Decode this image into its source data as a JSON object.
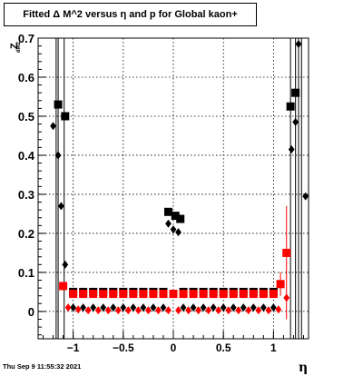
{
  "title": "Fitted Δ M^2 versus η and p for Global kaon+",
  "timestamp": "Thu Sep  9 11:55:32 2021",
  "chart_data": {
    "type": "scatter",
    "title": "Fitted Δ M^2 versus η and p for Global kaon+",
    "xlabel": "η",
    "ylabel": "Z",
    "ylabel_subscript": "dM2",
    "xlim": [
      -1.35,
      1.35
    ],
    "ylim": [
      -0.07,
      0.7
    ],
    "x_ticks": [
      "−1",
      "−0.5",
      "0",
      "0.5",
      "1"
    ],
    "y_ticks": [
      "0",
      "0.1",
      "0.2",
      "0.3",
      "0.4",
      "0.5",
      "0.6",
      "0.7"
    ],
    "grid": true,
    "series": [
      {
        "marker": "square",
        "color": "#000000",
        "points": [
          [
            -1.15,
            0.53
          ],
          [
            -1.08,
            0.5
          ],
          [
            -1.0,
            0.05
          ],
          [
            -0.9,
            0.05
          ],
          [
            -0.8,
            0.05
          ],
          [
            -0.7,
            0.05
          ],
          [
            -0.6,
            0.05
          ],
          [
            -0.5,
            0.05
          ],
          [
            -0.4,
            0.05
          ],
          [
            -0.3,
            0.05
          ],
          [
            -0.2,
            0.05
          ],
          [
            -0.1,
            0.05
          ],
          [
            -0.05,
            0.255
          ],
          [
            0.02,
            0.245
          ],
          [
            0.07,
            0.237
          ],
          [
            0.1,
            0.05
          ],
          [
            0.2,
            0.05
          ],
          [
            0.3,
            0.05
          ],
          [
            0.4,
            0.05
          ],
          [
            0.5,
            0.05
          ],
          [
            0.6,
            0.05
          ],
          [
            0.7,
            0.05
          ],
          [
            0.8,
            0.05
          ],
          [
            0.9,
            0.05
          ],
          [
            1.0,
            0.05
          ],
          [
            1.17,
            0.525
          ],
          [
            1.22,
            0.56
          ]
        ]
      },
      {
        "marker": "diamond",
        "color": "#000000",
        "points": [
          [
            -1.2,
            0.475
          ],
          [
            -1.15,
            0.4
          ],
          [
            -1.12,
            0.27
          ],
          [
            -1.08,
            0.12
          ],
          [
            -1.0,
            0.01
          ],
          [
            -0.9,
            0.01
          ],
          [
            -0.8,
            0.01
          ],
          [
            -0.7,
            0.01
          ],
          [
            -0.6,
            0.01
          ],
          [
            -0.5,
            0.01
          ],
          [
            -0.4,
            0.01
          ],
          [
            -0.3,
            0.01
          ],
          [
            -0.2,
            0.01
          ],
          [
            -0.1,
            0.01
          ],
          [
            -0.05,
            0.225
          ],
          [
            0.0,
            0.21
          ],
          [
            0.05,
            0.203
          ],
          [
            0.1,
            0.01
          ],
          [
            0.2,
            0.01
          ],
          [
            0.3,
            0.01
          ],
          [
            0.4,
            0.01
          ],
          [
            0.5,
            0.01
          ],
          [
            0.6,
            0.01
          ],
          [
            0.7,
            0.01
          ],
          [
            0.8,
            0.01
          ],
          [
            0.9,
            0.01
          ],
          [
            1.0,
            0.01
          ],
          [
            1.18,
            0.415
          ],
          [
            1.22,
            0.485
          ],
          [
            1.25,
            0.685
          ],
          [
            1.32,
            0.295
          ]
        ]
      },
      {
        "marker": "square",
        "color": "#ff0000",
        "points": [
          [
            -1.1,
            0.065
          ],
          [
            -1.0,
            0.045
          ],
          [
            -0.9,
            0.045
          ],
          [
            -0.8,
            0.045
          ],
          [
            -0.7,
            0.045
          ],
          [
            -0.6,
            0.045
          ],
          [
            -0.5,
            0.045
          ],
          [
            -0.4,
            0.045
          ],
          [
            -0.3,
            0.045
          ],
          [
            -0.2,
            0.045
          ],
          [
            -0.1,
            0.045
          ],
          [
            0.0,
            0.045
          ],
          [
            0.1,
            0.045
          ],
          [
            0.2,
            0.045
          ],
          [
            0.3,
            0.045
          ],
          [
            0.4,
            0.045
          ],
          [
            0.5,
            0.045
          ],
          [
            0.6,
            0.045
          ],
          [
            0.7,
            0.045
          ],
          [
            0.8,
            0.045
          ],
          [
            0.9,
            0.045
          ],
          [
            1.0,
            0.045
          ],
          [
            1.07,
            0.07
          ],
          [
            1.13,
            0.15
          ]
        ]
      },
      {
        "marker": "diamond",
        "color": "#ff0000",
        "points": [
          [
            -1.05,
            0.01
          ],
          [
            -0.95,
            0.005
          ],
          [
            -0.85,
            0.003
          ],
          [
            -0.75,
            0.003
          ],
          [
            -0.65,
            0.003
          ],
          [
            -0.55,
            0.003
          ],
          [
            -0.45,
            0.003
          ],
          [
            -0.35,
            0.003
          ],
          [
            -0.25,
            0.003
          ],
          [
            -0.15,
            0.003
          ],
          [
            -0.05,
            0.003
          ],
          [
            0.05,
            0.003
          ],
          [
            0.15,
            0.003
          ],
          [
            0.25,
            0.003
          ],
          [
            0.35,
            0.003
          ],
          [
            0.45,
            0.003
          ],
          [
            0.55,
            0.003
          ],
          [
            0.65,
            0.003
          ],
          [
            0.75,
            0.003
          ],
          [
            0.85,
            0.003
          ],
          [
            0.95,
            0.003
          ],
          [
            1.05,
            0.005
          ],
          [
            1.13,
            0.035
          ]
        ]
      }
    ]
  }
}
